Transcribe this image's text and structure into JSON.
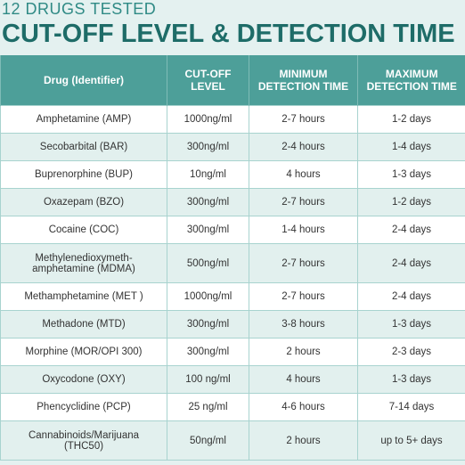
{
  "header": {
    "subtitle": "12 DRUGS TESTED",
    "title": "CUT-OFF LEVEL & DETECTION TIME"
  },
  "table": {
    "columns": [
      "Drug (Identifier)",
      "CUT-OFF LEVEL",
      "MINIMUM DETECTION TIME",
      "MAXIMUM DETECTION TIME"
    ],
    "rows": [
      [
        "Amphetamine (AMP)",
        "1000ng/ml",
        "2-7 hours",
        "1-2 days"
      ],
      [
        "Secobarbital (BAR)",
        "300ng/ml",
        "2-4 hours",
        "1-4 days"
      ],
      [
        "Buprenorphine (BUP)",
        "10ng/ml",
        "4 hours",
        "1-3 days"
      ],
      [
        "Oxazepam (BZO)",
        "300ng/ml",
        "2-7 hours",
        "1-2 days"
      ],
      [
        "Cocaine (COC)",
        "300ng/ml",
        "1-4 hours",
        "2-4 days"
      ],
      [
        "Methylenedioxymeth-amphetamine (MDMA)",
        "500ng/ml",
        "2-7 hours",
        "2-4 days"
      ],
      [
        "Methamphetamine (MET )",
        "1000ng/ml",
        "2-7 hours",
        "2-4 days"
      ],
      [
        "Methadone (MTD)",
        "300ng/ml",
        "3-8 hours",
        "1-3 days"
      ],
      [
        "Morphine (MOR/OPI 300)",
        "300ng/ml",
        "2 hours",
        "2-3 days"
      ],
      [
        "Oxycodone (OXY)",
        "100 ng/ml",
        "4 hours",
        "1-3 days"
      ],
      [
        "Phencyclidine (PCP)",
        "25 ng/ml",
        "4-6 hours",
        "7-14 days"
      ],
      [
        "Cannabinoids/Marijuana (THC50)",
        "50ng/ml",
        "2 hours",
        "up to 5+ days"
      ]
    ]
  }
}
